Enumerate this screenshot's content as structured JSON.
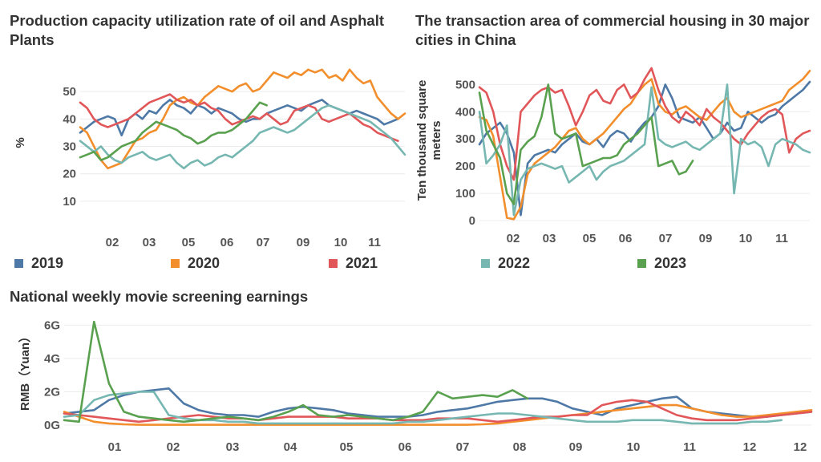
{
  "colors": {
    "2019": "#4E79A7",
    "2020": "#F28E2B",
    "2021": "#E15759",
    "2022": "#76B7B2",
    "2023": "#59A14F",
    "grid": "#ececec"
  },
  "legend": [
    {
      "label": "2019",
      "color": "#4E79A7"
    },
    {
      "label": "2020",
      "color": "#F28E2B"
    },
    {
      "label": "2021",
      "color": "#E15759"
    },
    {
      "label": "2022",
      "color": "#76B7B2"
    },
    {
      "label": "2023",
      "color": "#59A14F"
    }
  ],
  "chart_data": [
    {
      "type": "line",
      "title": "Production capacity utilization rate of oil and Asphalt Plants",
      "ylabel": "%",
      "ylim": [
        0,
        60
      ],
      "yticks": [
        10,
        20,
        30,
        40,
        50
      ],
      "xlim": [
        0,
        51
      ],
      "xtick_labels": [
        "02",
        "03",
        "05",
        "06",
        "07",
        "09",
        "10",
        "11"
      ],
      "xtick_positions": [
        8,
        15,
        23,
        30,
        37,
        44,
        50,
        51
      ],
      "series": [
        {
          "name": "2019",
          "values": [
            35,
            37,
            39,
            40,
            41,
            40,
            34,
            40,
            42,
            40,
            43,
            42,
            45,
            47,
            45,
            44,
            42,
            45,
            44,
            42,
            44,
            43,
            42,
            40,
            39,
            40,
            40,
            42,
            43,
            44,
            45,
            44,
            43,
            45,
            46,
            47,
            45,
            44,
            43,
            42,
            43,
            42,
            41,
            40,
            38,
            39,
            40
          ]
        },
        {
          "name": "2020",
          "values": [
            37,
            35,
            30,
            25,
            22,
            23,
            24,
            28,
            32,
            33,
            35,
            36,
            40,
            45,
            47,
            48,
            46,
            45,
            48,
            50,
            52,
            51,
            50,
            52,
            53,
            50,
            51,
            54,
            57,
            56,
            55,
            57,
            56,
            58,
            57,
            58,
            55,
            56,
            54,
            58,
            55,
            53,
            54,
            48,
            45,
            42,
            40,
            42
          ]
        },
        {
          "name": "2021",
          "values": [
            46,
            44,
            40,
            38,
            37,
            38,
            39,
            40,
            42,
            44,
            46,
            47,
            48,
            49,
            47,
            46,
            47,
            45,
            46,
            44,
            43,
            40,
            38,
            39,
            40,
            41,
            40,
            42,
            40,
            38,
            39,
            43,
            44,
            45,
            44,
            40,
            39,
            40,
            41,
            42,
            40,
            38,
            37,
            35,
            34,
            33,
            32
          ]
        },
        {
          "name": "2022",
          "values": [
            32,
            30,
            28,
            30,
            27,
            25,
            24,
            26,
            27,
            28,
            26,
            25,
            26,
            27,
            24,
            22,
            24,
            25,
            23,
            24,
            26,
            27,
            26,
            28,
            30,
            32,
            35,
            36,
            37,
            36,
            35,
            36,
            38,
            40,
            42,
            44,
            45,
            44,
            43,
            42,
            41,
            40,
            39,
            37,
            35,
            33,
            30,
            27
          ]
        },
        {
          "name": "2023",
          "values": [
            26,
            27,
            28,
            25,
            26,
            28,
            30,
            31,
            32,
            35,
            37,
            39,
            38,
            37,
            36,
            34,
            33,
            31,
            32,
            34,
            35,
            35,
            36,
            38,
            40,
            43,
            46,
            45
          ]
        }
      ]
    },
    {
      "type": "line",
      "title": "The transaction area of commercial housing in 30 major cities in China",
      "ylabel": "Ten thousand square meters",
      "ylim": [
        0,
        560
      ],
      "yticks": [
        0,
        100,
        200,
        300,
        400,
        500
      ],
      "xlim": [
        0,
        51
      ],
      "xtick_labels": [
        "02",
        "03",
        "05",
        "06",
        "07",
        "09",
        "10",
        "11"
      ],
      "series": [
        {
          "name": "2019",
          "values": [
            280,
            320,
            340,
            360,
            320,
            250,
            20,
            210,
            240,
            250,
            260,
            250,
            280,
            300,
            320,
            290,
            280,
            300,
            270,
            310,
            330,
            320,
            290,
            330,
            360,
            380,
            420,
            500,
            450,
            380,
            370,
            360,
            380,
            340,
            300,
            320,
            360,
            330,
            340,
            400,
            380,
            360,
            380,
            390,
            420,
            440,
            460,
            480,
            510
          ]
        },
        {
          "name": "2020",
          "values": [
            380,
            370,
            310,
            160,
            10,
            5,
            50,
            170,
            210,
            230,
            250,
            270,
            300,
            330,
            340,
            300,
            280,
            300,
            320,
            350,
            380,
            410,
            430,
            470,
            500,
            520,
            430,
            400,
            390,
            410,
            420,
            400,
            380,
            370,
            400,
            430,
            450,
            400,
            380,
            390,
            400,
            410,
            420,
            430,
            440,
            480,
            500,
            520,
            550
          ]
        },
        {
          "name": "2021",
          "values": [
            490,
            470,
            400,
            280,
            200,
            150,
            400,
            430,
            460,
            480,
            490,
            470,
            480,
            420,
            350,
            400,
            460,
            480,
            440,
            430,
            480,
            500,
            450,
            470,
            520,
            560,
            480,
            420,
            380,
            360,
            400,
            380,
            350,
            410,
            380,
            360,
            330,
            300,
            280,
            320,
            350,
            380,
            400,
            410,
            390,
            250,
            300,
            320,
            330
          ]
        },
        {
          "name": "2022",
          "values": [
            400,
            210,
            240,
            280,
            350,
            20,
            150,
            190,
            200,
            210,
            200,
            190,
            200,
            140,
            160,
            180,
            200,
            150,
            180,
            200,
            210,
            220,
            240,
            260,
            280,
            490,
            300,
            280,
            270,
            280,
            290,
            270,
            260,
            280,
            300,
            320,
            500,
            100,
            300,
            280,
            290,
            270,
            200,
            280,
            300,
            290,
            280,
            260,
            250
          ]
        },
        {
          "name": "2023",
          "values": [
            470,
            330,
            280,
            230,
            100,
            60,
            260,
            290,
            310,
            380,
            500,
            320,
            300,
            310,
            320,
            200,
            210,
            220,
            230,
            230,
            240,
            280,
            300,
            320,
            350,
            380,
            200,
            210,
            220,
            170,
            180,
            220
          ]
        }
      ]
    },
    {
      "type": "line",
      "title": "National weekly movie screening earnings",
      "ylabel": "RMB（Yuan）",
      "ylim": [
        0,
        6.5
      ],
      "yticks": [
        0,
        2,
        4,
        6
      ],
      "ytick_labels": [
        "0G",
        "2G",
        "4G",
        "6G"
      ],
      "xlim": [
        0,
        52
      ],
      "xtick_labels": [
        "01",
        "02",
        "03",
        "04",
        "05",
        "06",
        "07",
        "08",
        "09",
        "10",
        "11",
        "12",
        "12"
      ],
      "series": [
        {
          "name": "2019",
          "values": [
            0.7,
            0.8,
            0.9,
            1.5,
            1.8,
            2.0,
            2.1,
            2.2,
            1.3,
            0.9,
            0.7,
            0.6,
            0.6,
            0.5,
            0.8,
            1.0,
            1.1,
            1.0,
            0.9,
            0.7,
            0.6,
            0.5,
            0.5,
            0.5,
            0.6,
            0.8,
            0.9,
            1.0,
            1.2,
            1.4,
            1.5,
            1.6,
            1.6,
            1.4,
            1.0,
            0.8,
            0.6,
            1.0,
            1.2,
            1.4,
            1.6,
            1.7,
            1.0,
            0.8,
            0.7,
            0.6,
            0.5,
            0.5,
            0.6,
            0.7,
            0.8
          ]
        },
        {
          "name": "2020",
          "values": [
            0.8,
            0.5,
            0.2,
            0.1,
            0.05,
            0.02,
            0.02,
            0.02,
            0.02,
            0.02,
            0.02,
            0.02,
            0.02,
            0.02,
            0.02,
            0.02,
            0.02,
            0.02,
            0.02,
            0.02,
            0.02,
            0.02,
            0.02,
            0.02,
            0.02,
            0.02,
            0.02,
            0.02,
            0.05,
            0.1,
            0.2,
            0.3,
            0.4,
            0.5,
            0.6,
            0.7,
            0.8,
            0.9,
            1.0,
            1.1,
            1.2,
            1.2,
            1.0,
            0.8,
            0.6,
            0.5,
            0.5,
            0.6,
            0.7,
            0.8,
            0.9
          ]
        },
        {
          "name": "2021",
          "values": [
            0.7,
            0.6,
            0.5,
            0.4,
            0.3,
            0.2,
            0.3,
            0.4,
            0.5,
            0.6,
            0.5,
            0.4,
            0.4,
            0.3,
            0.4,
            0.5,
            0.5,
            0.5,
            0.5,
            0.4,
            0.4,
            0.4,
            0.3,
            0.3,
            0.3,
            0.4,
            0.4,
            0.4,
            0.3,
            0.2,
            0.3,
            0.4,
            0.5,
            0.5,
            0.6,
            0.6,
            1.2,
            1.4,
            1.5,
            1.4,
            1.0,
            0.6,
            0.4,
            0.3,
            0.3,
            0.3,
            0.4,
            0.5,
            0.6,
            0.7,
            0.8
          ]
        },
        {
          "name": "2022",
          "values": [
            0.5,
            0.6,
            1.5,
            1.8,
            1.9,
            2.0,
            2.0,
            0.6,
            0.4,
            0.3,
            0.3,
            0.2,
            0.2,
            0.1,
            0.1,
            0.1,
            0.1,
            0.1,
            0.1,
            0.1,
            0.1,
            0.1,
            0.1,
            0.2,
            0.2,
            0.3,
            0.4,
            0.5,
            0.6,
            0.7,
            0.7,
            0.6,
            0.5,
            0.4,
            0.3,
            0.2,
            0.2,
            0.2,
            0.3,
            0.3,
            0.3,
            0.2,
            0.1,
            0.1,
            0.1,
            0.1,
            0.2,
            0.2,
            0.3
          ]
        },
        {
          "name": "2023",
          "values": [
            0.3,
            0.2,
            6.2,
            2.5,
            0.8,
            0.5,
            0.4,
            0.3,
            0.2,
            0.3,
            0.4,
            0.5,
            0.4,
            0.3,
            0.5,
            0.8,
            1.2,
            0.6,
            0.5,
            0.6,
            0.5,
            0.4,
            0.3,
            0.5,
            0.8,
            2.0,
            1.6,
            1.7,
            1.8,
            1.7,
            2.1,
            1.6
          ]
        }
      ]
    }
  ]
}
